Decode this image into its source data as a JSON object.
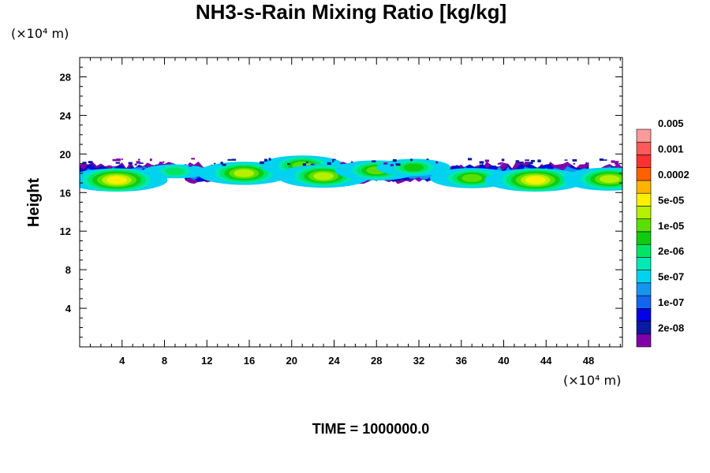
{
  "chart_data": {
    "type": "heatmap",
    "title": "NH3-s-Rain Mixing Ratio [kg/kg]",
    "ylabel": "Height",
    "xlabel": "",
    "x_unit": "(×10⁴ m)",
    "y_unit": "(×10⁴ m)",
    "xlim": [
      0,
      51.2
    ],
    "ylim": [
      0,
      30
    ],
    "x_ticks": [
      4,
      8,
      12,
      16,
      20,
      24,
      28,
      32,
      36,
      40,
      44,
      48
    ],
    "y_ticks": [
      4,
      8,
      12,
      16,
      20,
      24,
      28
    ],
    "colorbar": {
      "levels": [
        "2e-08",
        "1e-07",
        "5e-07",
        "2e-06",
        "1e-05",
        "5e-05",
        "0.0002",
        "0.001",
        "0.005"
      ],
      "colors": [
        "#8000a8",
        "#0a1aa0",
        "#0000e6",
        "#1464f0",
        "#1496f0",
        "#00d2f0",
        "#00e8b4",
        "#00e664",
        "#10cc10",
        "#5ae000",
        "#b4f000",
        "#fff000",
        "#ffb400",
        "#ff6000",
        "#ff3030",
        "#ff5a5a",
        "#ff9a9a"
      ]
    },
    "cloud_band": {
      "y_bottom_min": 16.6,
      "y_top_max": 19.8,
      "cores": [
        {
          "x": 3.5,
          "y": 17.3,
          "level": 11
        },
        {
          "x": 9.0,
          "y": 18.2,
          "level": 7
        },
        {
          "x": 15.5,
          "y": 18.0,
          "level": 10
        },
        {
          "x": 21.0,
          "y": 18.8,
          "level": 9
        },
        {
          "x": 23.0,
          "y": 17.7,
          "level": 10
        },
        {
          "x": 28.0,
          "y": 18.3,
          "level": 9
        },
        {
          "x": 31.5,
          "y": 18.6,
          "level": 8
        },
        {
          "x": 37.0,
          "y": 17.5,
          "level": 9
        },
        {
          "x": 43.0,
          "y": 17.3,
          "level": 11
        },
        {
          "x": 50.0,
          "y": 17.4,
          "level": 10
        }
      ],
      "gap_x": [
        48.0,
        49.0
      ]
    }
  },
  "time_label": "TIME = 1000000.0"
}
